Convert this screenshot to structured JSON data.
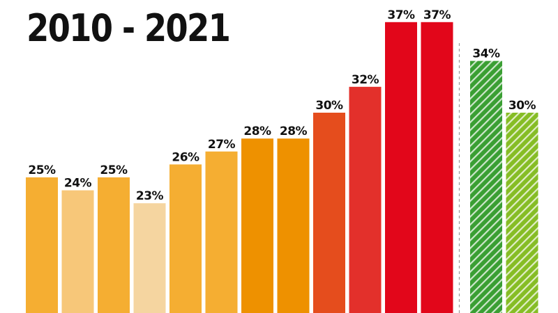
{
  "title": "2010 - 2021",
  "chart_data": {
    "type": "bar",
    "title": "2010 - 2021",
    "xlabel": "",
    "ylabel": "",
    "ylim": [
      0,
      40
    ],
    "grid": false,
    "values": [
      25,
      24,
      25,
      23,
      26,
      27,
      28,
      28,
      30,
      32,
      37,
      37,
      34,
      30
    ],
    "labels": [
      "25%",
      "24%",
      "25%",
      "23%",
      "26%",
      "27%",
      "28%",
      "28%",
      "30%",
      "32%",
      "37%",
      "37%",
      "34%",
      "30%"
    ],
    "colors": [
      "#f5ae32",
      "#f7c779",
      "#f5ae32",
      "#f5d5a0",
      "#f5ae32",
      "#f5ae32",
      "#ee9100",
      "#ee9100",
      "#e54d1d",
      "#e3302b",
      "#e2061a",
      "#e2061a",
      "#3a9f33",
      "#86bd25"
    ],
    "hatched": [
      false,
      false,
      false,
      false,
      false,
      false,
      false,
      false,
      false,
      false,
      false,
      false,
      true,
      true
    ],
    "separator_after_index": 11
  }
}
